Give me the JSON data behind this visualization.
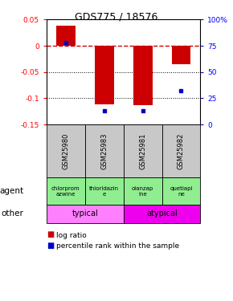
{
  "title": "GDS775 / 18576",
  "samples": [
    "GSM25980",
    "GSM25983",
    "GSM25981",
    "GSM25982"
  ],
  "log_ratios": [
    0.038,
    -0.112,
    -0.113,
    -0.035
  ],
  "percentile_ranks": [
    78,
    13,
    13,
    32
  ],
  "agent_texts": [
    "chlorprom\nazwine",
    "thioridazin\ne",
    "olanzap\nine",
    "quetiapi\nne"
  ],
  "bar_color_red": "#CC0000",
  "bar_color_blue": "#0000CC",
  "ylim_left": [
    -0.15,
    0.05
  ],
  "ylim_right": [
    0,
    100
  ],
  "yticks_left": [
    -0.15,
    -0.1,
    -0.05,
    0.0,
    0.05
  ],
  "ytick_labels_left": [
    "-0.15",
    "-0.1",
    "-0.05",
    "0",
    "0.05"
  ],
  "yticks_right": [
    0,
    25,
    50,
    75,
    100
  ],
  "ytick_labels_right": [
    "0",
    "25",
    "50",
    "75",
    "100%"
  ],
  "zero_line_color": "#CC0000",
  "cell_bg_color": "#C8C8C8",
  "agent_bg_color": "#90EE90",
  "typical_color": "#FF80FF",
  "atypical_color": "#EE00EE",
  "legend_red_label": "log ratio",
  "legend_blue_label": "percentile rank within the sample"
}
